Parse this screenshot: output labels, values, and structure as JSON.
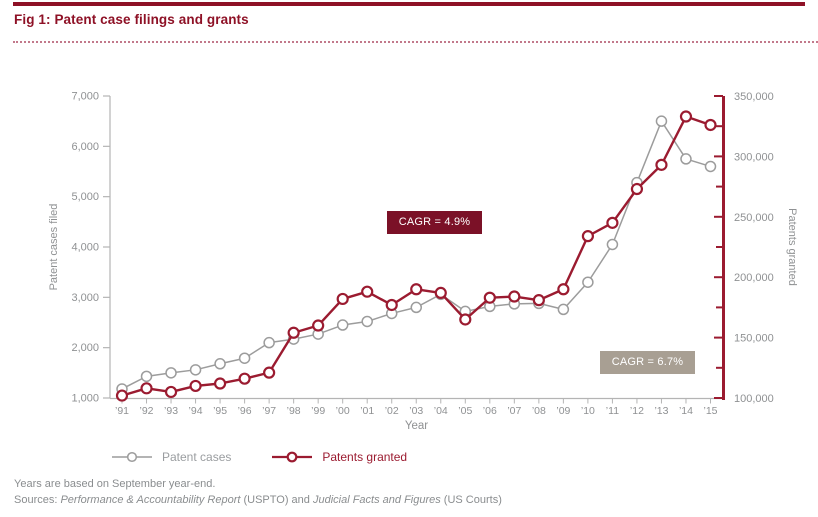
{
  "header": {
    "title": "Fig 1: Patent case filings and grants"
  },
  "colors": {
    "maroon": "#8e1126",
    "series_red": "#9b1b30",
    "series_gray": "#9c9c9c",
    "axis_gray": "#b4b4b4",
    "text_gray": "#8f9193",
    "cagr_red_bg": "#7b1127",
    "cagr_gray_bg": "#a89f93"
  },
  "chart_data": {
    "type": "line",
    "x_categories": [
      "’91",
      "’92",
      "’93",
      "’94",
      "’95",
      "’96",
      "’97",
      "’98",
      "’99",
      "’00",
      "’01",
      "’02",
      "’03",
      "’04",
      "’05",
      "’06",
      "’07",
      "’08",
      "’09",
      "’10",
      "’11",
      "’12",
      "’13",
      "’14",
      "’15"
    ],
    "xlabel": "Year",
    "grid": false,
    "legend_position": "bottom",
    "left_axis": {
      "label": "Patent cases filed",
      "min": 1000,
      "max": 7000,
      "ticks": [
        {
          "v": 1000,
          "label": "1,000"
        },
        {
          "v": 2000,
          "label": "2,000"
        },
        {
          "v": 3000,
          "label": "3,000"
        },
        {
          "v": 4000,
          "label": "4,000"
        },
        {
          "v": 5000,
          "label": "5,000"
        },
        {
          "v": 6000,
          "label": "6,000"
        },
        {
          "v": 7000,
          "label": "7,000"
        }
      ]
    },
    "right_axis": {
      "label": "Patents granted",
      "min": 100000,
      "max": 350000,
      "major_ticks": [
        {
          "v": 100000,
          "label": "100,000"
        },
        {
          "v": 150000,
          "label": "150,000"
        },
        {
          "v": 200000,
          "label": "200,000"
        },
        {
          "v": 250000,
          "label": "250,000"
        },
        {
          "v": 300000,
          "label": "300,000"
        },
        {
          "v": 350000,
          "label": "350,000"
        }
      ],
      "minor_tick_values": [
        125000,
        175000,
        225000,
        275000,
        325000
      ]
    },
    "series": [
      {
        "name": "Patent cases",
        "axis": "left",
        "color": "#9c9c9c",
        "line_width": 1.5,
        "marker_stroke_width": 1.5,
        "values": [
          1180,
          1430,
          1500,
          1560,
          1680,
          1790,
          2100,
          2170,
          2270,
          2450,
          2520,
          2680,
          2800,
          3060,
          2720,
          2820,
          2870,
          2880,
          2760,
          3300,
          4050,
          5280,
          6500,
          5750,
          5600
        ]
      },
      {
        "name": "Patents granted",
        "axis": "right",
        "color": "#9b1b30",
        "line_width": 2.4,
        "marker_stroke_width": 2.2,
        "values": [
          102000,
          108000,
          105000,
          110000,
          112000,
          116000,
          121000,
          154000,
          160000,
          182000,
          188000,
          177000,
          190000,
          187000,
          165000,
          183000,
          184000,
          181000,
          190000,
          234000,
          245000,
          273000,
          293000,
          333000,
          326000
        ]
      }
    ],
    "annotations": [
      {
        "text": "CAGR = 4.9%",
        "bg": "#7b1127",
        "refers_to": "Patents granted"
      },
      {
        "text": "CAGR = 6.7%",
        "bg": "#a89f93",
        "refers_to": "Patent cases"
      }
    ]
  },
  "legend": {
    "items": [
      {
        "label": "Patent cases",
        "color": "#9c9c9c",
        "text_color": "#9a9da0",
        "line_width": 1.5,
        "marker_width": 1.5
      },
      {
        "label": "Patents granted",
        "color": "#9b1b30",
        "text_color": "#9b1b30",
        "line_width": 2.2,
        "marker_width": 2.2
      }
    ]
  },
  "footer": {
    "note": "Years are based on September year-end.",
    "sources": {
      "prefix": "Sources: ",
      "italic1": "Performance & Accountability Report",
      "mid": " (USPTO) and ",
      "italic2": "Judicial Facts and Figures",
      "suffix": " (US Courts)"
    }
  }
}
